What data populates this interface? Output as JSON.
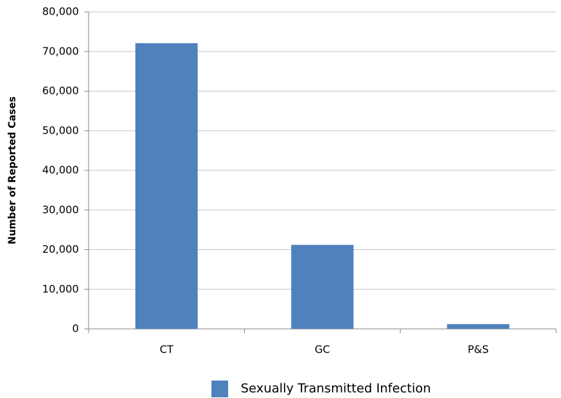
{
  "chart_data": {
    "type": "bar",
    "y_label": "Number of Reported Cases",
    "categories": [
      "CT",
      "GC",
      "P&S"
    ],
    "series": [
      {
        "name": "Sexually Transmitted Infection",
        "color": "#4f81bd",
        "values": [
          72100,
          21200,
          1200
        ]
      }
    ],
    "ylim": [
      0,
      80000
    ],
    "yticks": [
      0,
      {
        "value": 10000,
        "label": "10,000"
      },
      {
        "value": 20000,
        "label": "20,000"
      },
      {
        "value": 30000,
        "label": "30,000"
      },
      {
        "value": 40000,
        "label": "40,000"
      },
      {
        "value": 50000,
        "label": "50,000"
      },
      {
        "value": 60000,
        "label": "60,000"
      },
      {
        "value": 70000,
        "label": "70,000"
      },
      {
        "value": 80000,
        "label": "80,000"
      }
    ],
    "grid": true,
    "legend": "bottom"
  }
}
